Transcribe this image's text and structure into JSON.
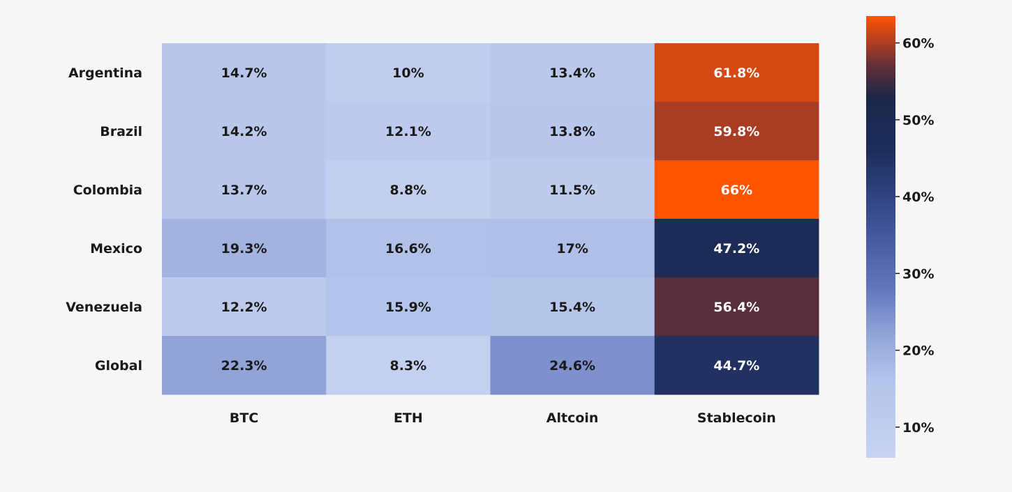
{
  "chart_data": {
    "type": "heatmap",
    "title": "",
    "xlabel": "",
    "ylabel": "",
    "value_format": "percent",
    "rows": [
      "Argentina",
      "Brazil",
      "Colombia",
      "Mexico",
      "Venezuela",
      "Global"
    ],
    "columns": [
      "BTC",
      "ETH",
      "Altcoin",
      "Stablecoin"
    ],
    "values": [
      [
        14.7,
        10,
        13.4,
        61.8
      ],
      [
        14.2,
        12.1,
        13.8,
        59.8
      ],
      [
        13.7,
        8.8,
        11.5,
        66
      ],
      [
        19.3,
        16.6,
        17,
        47.2
      ],
      [
        12.2,
        15.9,
        15.4,
        56.4
      ],
      [
        22.3,
        8.3,
        24.6,
        44.7
      ]
    ],
    "cell_labels": [
      [
        "14.7%",
        "10%",
        "13.4%",
        "61.8%"
      ],
      [
        "14.2%",
        "12.1%",
        "13.8%",
        "59.8%"
      ],
      [
        "13.7%",
        "8.8%",
        "11.5%",
        "66%"
      ],
      [
        "19.3%",
        "16.6%",
        "17%",
        "47.2%"
      ],
      [
        "12.2%",
        "15.9%",
        "15.4%",
        "56.4%"
      ],
      [
        "22.3%",
        "8.3%",
        "24.6%",
        "44.7%"
      ]
    ],
    "colorbar": {
      "range": [
        6,
        63.5
      ],
      "ticks": [
        10,
        20,
        30,
        40,
        50,
        60
      ],
      "tick_labels": [
        "10%",
        "20%",
        "30%",
        "40%",
        "50%",
        "60%"
      ],
      "stops": [
        {
          "value": 6,
          "color": "#c9d3f1"
        },
        {
          "value": 16,
          "color": "#b5c4ea"
        },
        {
          "value": 22,
          "color": "#93a5d8"
        },
        {
          "value": 28,
          "color": "#6277bd"
        },
        {
          "value": 37,
          "color": "#3b4f93"
        },
        {
          "value": 46,
          "color": "#1d2c5a"
        },
        {
          "value": 53,
          "color": "#1b2648"
        },
        {
          "value": 57,
          "color": "#622f38"
        },
        {
          "value": 60.5,
          "color": "#b9411f"
        },
        {
          "value": 63.5,
          "color": "#ff5300"
        }
      ]
    },
    "label_colors": {
      "dark": "#1a1a1a",
      "light": "#ffffff"
    },
    "grid": false
  }
}
